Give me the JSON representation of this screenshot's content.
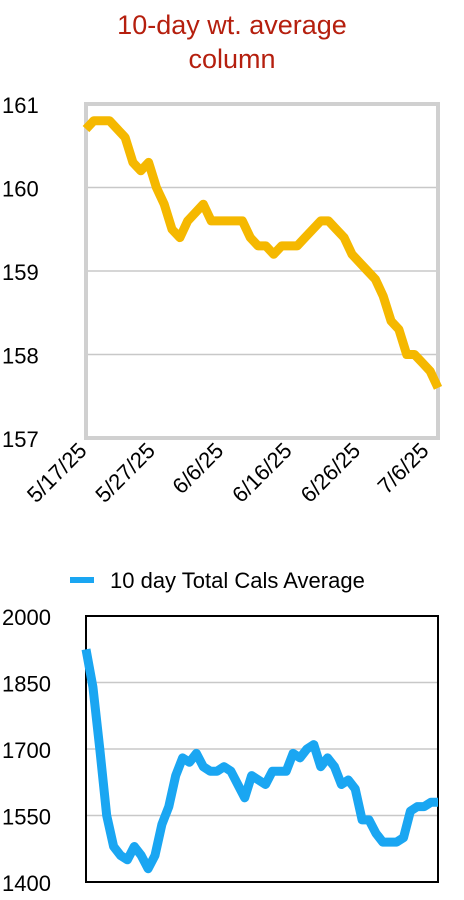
{
  "colors": {
    "title": "#b51f0e",
    "series1": "#f5b800",
    "series2": "#1aa6f2",
    "grid": "#c8c8c8",
    "frame1": "#d0d0d0",
    "frame2": "#000000"
  },
  "chart_data": [
    {
      "type": "line",
      "title_lines": [
        "10-day wt. average",
        "column"
      ],
      "ylim": [
        157,
        161
      ],
      "yticks": [
        "161",
        "160",
        "159",
        "158",
        "157"
      ],
      "xticks": [
        "5/17/25",
        "5/27/25",
        "6/6/25",
        "6/16/25",
        "6/26/25",
        "7/6/25"
      ],
      "grid": true,
      "series": [
        {
          "values": [
            160.7,
            160.8,
            160.8,
            160.8,
            160.7,
            160.6,
            160.3,
            160.2,
            160.3,
            160.0,
            159.8,
            159.5,
            159.4,
            159.6,
            159.7,
            159.8,
            159.6,
            159.6,
            159.6,
            159.6,
            159.6,
            159.4,
            159.3,
            159.3,
            159.2,
            159.3,
            159.3,
            159.3,
            159.4,
            159.5,
            159.6,
            159.6,
            159.5,
            159.4,
            159.2,
            159.1,
            159.0,
            158.9,
            158.7,
            158.4,
            158.3,
            158.0,
            158.0,
            157.9,
            157.8,
            157.6
          ]
        }
      ]
    },
    {
      "type": "line",
      "ylim": [
        1400,
        2000
      ],
      "yticks": [
        "2000",
        "1850",
        "1700",
        "1550",
        "1400"
      ],
      "grid": true,
      "legend_position": "top",
      "series": [
        {
          "name": "10 day Total Cals Average",
          "values": [
            1925,
            1840,
            1700,
            1550,
            1480,
            1460,
            1450,
            1480,
            1460,
            1430,
            1460,
            1530,
            1570,
            1640,
            1680,
            1670,
            1690,
            1660,
            1650,
            1650,
            1660,
            1650,
            1620,
            1590,
            1640,
            1630,
            1620,
            1650,
            1650,
            1650,
            1690,
            1680,
            1700,
            1710,
            1660,
            1680,
            1660,
            1620,
            1630,
            1610,
            1540,
            1540,
            1510,
            1490,
            1490,
            1490,
            1500,
            1560,
            1570,
            1570,
            1580,
            1580
          ]
        }
      ]
    }
  ]
}
